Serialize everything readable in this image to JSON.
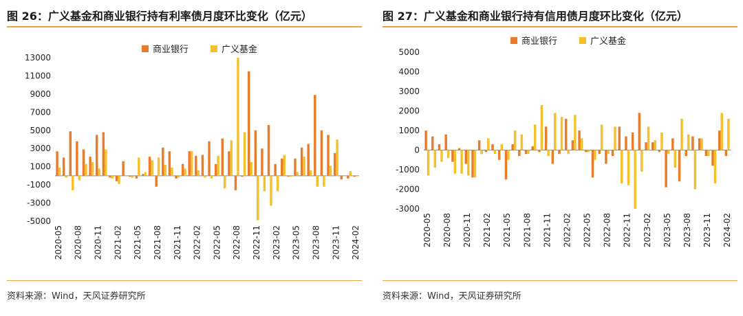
{
  "colors": {
    "bank": "#e87c2a",
    "fund": "#f5c02c",
    "accent": "#e8a33d"
  },
  "source_text": "资料来源：Wind，天风证券研究所",
  "chart_data": [
    {
      "type": "bar",
      "title": "图 26：广义基金和商业银行持有利率债月度环比变化（亿元）",
      "legend": [
        "商业银行",
        "广义基金"
      ],
      "legend_position": "top",
      "ylim": [
        -5000,
        13000
      ],
      "yticks": [
        13000,
        11000,
        9000,
        7000,
        5000,
        3000,
        1000,
        -1000,
        -3000,
        -5000
      ],
      "xtick_labels": [
        "2020-05",
        "2020-08",
        "2020-11",
        "2021-02",
        "2021-05",
        "2021-08",
        "2021-11",
        "2022-02",
        "2022-05",
        "2022-08",
        "2022-11",
        "2023-02",
        "2023-05",
        "2023-08",
        "2023-11",
        "2024-02"
      ],
      "categories": [
        "2020-05",
        "2020-06",
        "2020-07",
        "2020-08",
        "2020-09",
        "2020-10",
        "2020-11",
        "2020-12",
        "2021-01",
        "2021-02",
        "2021-03",
        "2021-04",
        "2021-05",
        "2021-06",
        "2021-07",
        "2021-08",
        "2021-09",
        "2021-10",
        "2021-11",
        "2021-12",
        "2022-01",
        "2022-02",
        "2022-03",
        "2022-04",
        "2022-05",
        "2022-06",
        "2022-07",
        "2022-08",
        "2022-09",
        "2022-10",
        "2022-11",
        "2022-12",
        "2023-01",
        "2023-02",
        "2023-03",
        "2023-04",
        "2023-05",
        "2023-06",
        "2023-07",
        "2023-08",
        "2023-09",
        "2023-10",
        "2023-11",
        "2023-12",
        "2024-01",
        "2024-02"
      ],
      "series": [
        {
          "name": "商业银行",
          "values": [
            2700,
            2000,
            4900,
            3800,
            2900,
            2100,
            4500,
            4800,
            -200,
            -600,
            1600,
            -100,
            -300,
            200,
            2100,
            -1200,
            3100,
            2700,
            -300,
            1300,
            2700,
            2200,
            2300,
            3800,
            1300,
            4100,
            2700,
            -1600,
            -100,
            11500,
            5000,
            3000,
            5600,
            1300,
            1900,
            -100,
            1900,
            3100,
            3500,
            8900,
            5000,
            4500,
            2500,
            -400,
            -300,
            -100
          ]
        },
        {
          "name": "广义基金",
          "values": [
            900,
            -200,
            -1600,
            -500,
            1300,
            1500,
            800,
            2900,
            -300,
            -900,
            0,
            -200,
            2000,
            400,
            1700,
            2000,
            1200,
            900,
            -200,
            800,
            2700,
            600,
            -200,
            -300,
            2200,
            -1400,
            3900,
            13000,
            4800,
            1500,
            -4900,
            -1700,
            -3300,
            -1700,
            2300,
            -100,
            400,
            2100,
            600,
            -1200,
            -1200,
            1100,
            4000,
            0,
            500,
            0
          ]
        }
      ]
    },
    {
      "type": "bar",
      "title": "图 27：广义基金和商业银行持有信用债月度环比变化（亿元）",
      "legend": [
        "商业银行",
        "广义基金"
      ],
      "legend_position": "top",
      "ylim": [
        -3000,
        5000
      ],
      "yticks": [
        5000,
        4000,
        3000,
        2000,
        1000,
        0,
        -1000,
        -2000,
        -3000
      ],
      "xtick_labels": [
        "2020-05",
        "2020-08",
        "2020-11",
        "2021-02",
        "2021-05",
        "2021-08",
        "2021-11",
        "2022-02",
        "2022-05",
        "2022-08",
        "2022-11",
        "2023-02",
        "2023-05",
        "2023-08",
        "2023-11",
        "2024-02"
      ],
      "categories": [
        "2020-05",
        "2020-06",
        "2020-07",
        "2020-08",
        "2020-09",
        "2020-10",
        "2020-11",
        "2020-12",
        "2021-01",
        "2021-02",
        "2021-03",
        "2021-04",
        "2021-05",
        "2021-06",
        "2021-07",
        "2021-08",
        "2021-09",
        "2021-10",
        "2021-11",
        "2021-12",
        "2022-01",
        "2022-02",
        "2022-03",
        "2022-04",
        "2022-05",
        "2022-06",
        "2022-07",
        "2022-08",
        "2022-09",
        "2022-10",
        "2022-11",
        "2022-12",
        "2023-01",
        "2023-02",
        "2023-03",
        "2023-04",
        "2023-05",
        "2023-06",
        "2023-07",
        "2023-08",
        "2023-09",
        "2023-10",
        "2023-11",
        "2023-12",
        "2024-01",
        "2024-02"
      ],
      "series": [
        {
          "name": "商业银行",
          "values": [
            1000,
            700,
            300,
            800,
            -600,
            100,
            -700,
            -1400,
            500,
            -100,
            300,
            -500,
            -1500,
            300,
            -300,
            -200,
            200,
            -100,
            1200,
            -700,
            -200,
            1600,
            500,
            1000,
            -100,
            -1400,
            -200,
            -700,
            -300,
            1200,
            700,
            900,
            1900,
            400,
            400,
            -100,
            -1900,
            600,
            -1600,
            -300,
            700,
            600,
            -300,
            -800,
            1000,
            -300
          ]
        },
        {
          "name": "广义基金",
          "values": [
            -1300,
            -900,
            -600,
            -400,
            -1200,
            -1200,
            -1300,
            -1400,
            -200,
            600,
            -200,
            300,
            -500,
            1000,
            800,
            -200,
            1300,
            2300,
            -300,
            1900,
            1700,
            -200,
            1800,
            600,
            -100,
            -500,
            1300,
            -200,
            1200,
            -1700,
            -1800,
            -3000,
            -1100,
            1200,
            500,
            900,
            -200,
            -900,
            1600,
            800,
            -2000,
            600,
            -300,
            -1700,
            1900,
            1600
          ]
        }
      ]
    }
  ]
}
